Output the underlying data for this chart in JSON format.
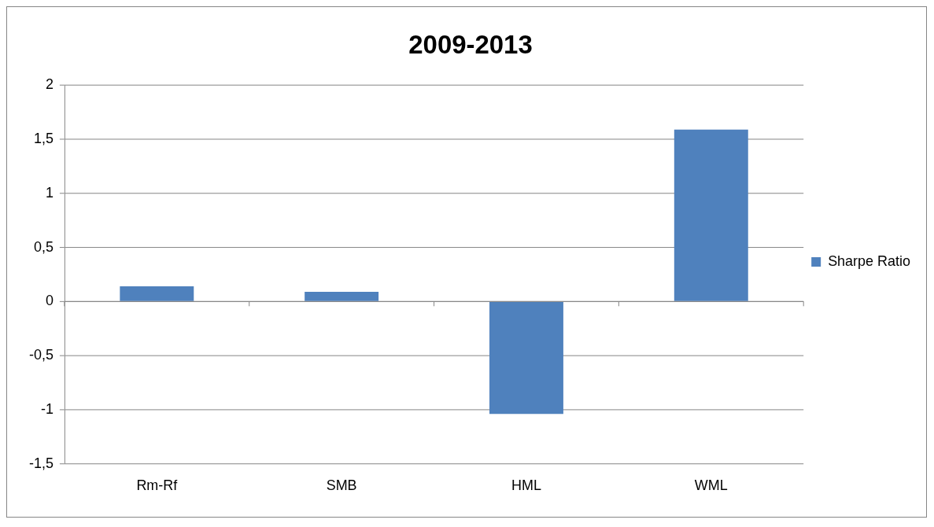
{
  "chart_data": {
    "type": "bar",
    "title": "2009-2013",
    "categories": [
      "Rm-Rf",
      "SMB",
      "HML",
      "WML"
    ],
    "series": [
      {
        "name": "Sharpe Ratio",
        "color": "#4f81bd",
        "values": [
          0.14,
          0.09,
          -1.04,
          1.59
        ]
      }
    ],
    "ylim": [
      -1.5,
      2
    ],
    "yticks": [
      {
        "value": -1.5,
        "label": "-1,5"
      },
      {
        "value": -1,
        "label": "-1"
      },
      {
        "value": -0.5,
        "label": "-0,5"
      },
      {
        "value": 0,
        "label": "0"
      },
      {
        "value": 0.5,
        "label": "0,5"
      },
      {
        "value": 1,
        "label": "1"
      },
      {
        "value": 1.5,
        "label": "1,5"
      },
      {
        "value": 2,
        "label": "2"
      }
    ],
    "grid": "y",
    "legend": "right"
  }
}
